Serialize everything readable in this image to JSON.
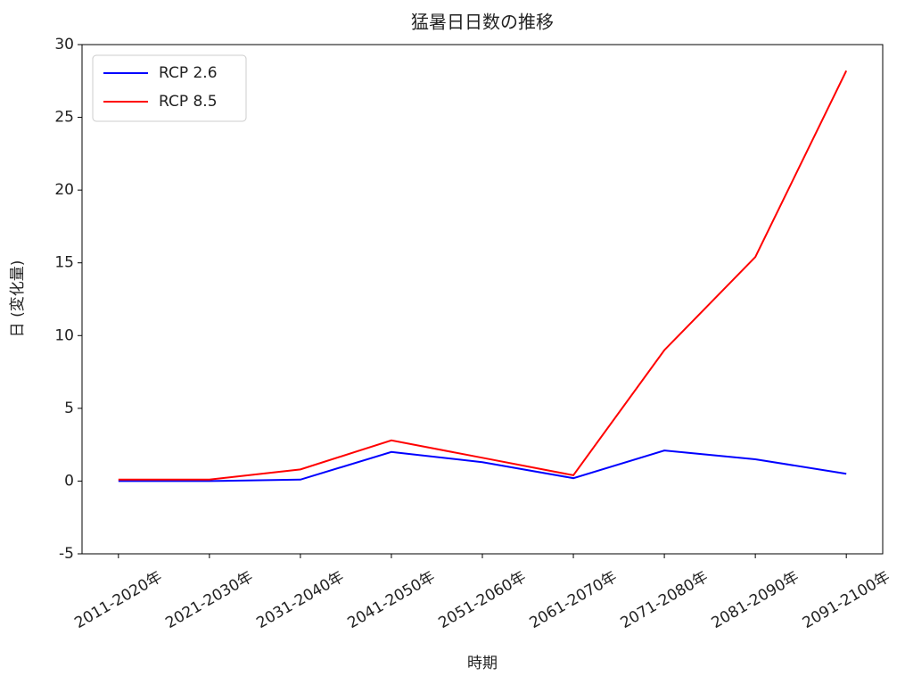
{
  "chart_data": {
    "type": "line",
    "title": "猛暑日日数の推移",
    "xlabel": "時期",
    "ylabel": "日 (変化量)",
    "categories": [
      "2011-2020年",
      "2021-2030年",
      "2031-2040年",
      "2041-2050年",
      "2051-2060年",
      "2061-2070年",
      "2071-2080年",
      "2081-2090年",
      "2091-2100年"
    ],
    "series": [
      {
        "name": "RCP 2.6",
        "color": "#0000ff",
        "values": [
          0,
          0,
          0.1,
          2.0,
          1.3,
          0.2,
          2.1,
          1.5,
          0.5
        ]
      },
      {
        "name": "RCP 8.5",
        "color": "#ff0000",
        "values": [
          0.1,
          0.1,
          0.8,
          2.8,
          1.6,
          0.4,
          9.0,
          15.4,
          28.2
        ]
      }
    ],
    "ylim": [
      -5,
      30
    ],
    "yticks": [
      -5,
      0,
      5,
      10,
      15,
      20,
      25,
      30
    ],
    "grid": false,
    "legend": "upper left"
  }
}
